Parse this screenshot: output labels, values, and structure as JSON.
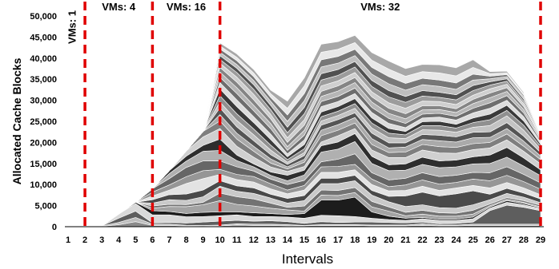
{
  "chart_data": {
    "type": "area",
    "stacked": true,
    "title": "",
    "xlabel": "Intervals",
    "ylabel": "Allocated Cache Blocks",
    "x": [
      1,
      2,
      3,
      4,
      5,
      6,
      7,
      8,
      9,
      10,
      11,
      12,
      13,
      14,
      15,
      16,
      17,
      18,
      19,
      20,
      21,
      22,
      23,
      24,
      25,
      26,
      27,
      28,
      29
    ],
    "x_tick_labels": [
      "1",
      "2",
      "3",
      "4",
      "5",
      "6",
      "7",
      "8",
      "9",
      "10",
      "11",
      "12",
      "13",
      "14",
      "15",
      "16",
      "17",
      "18",
      "19",
      "20",
      "21",
      "22",
      "23",
      "24",
      "25",
      "26",
      "27",
      "28",
      "29"
    ],
    "ylim": [
      0,
      50000
    ],
    "y_ticks": [
      0,
      5000,
      10000,
      15000,
      20000,
      25000,
      30000,
      35000,
      40000,
      45000,
      50000
    ],
    "y_tick_labels": [
      "0",
      "5,000",
      "10,000",
      "15,000",
      "20,000",
      "25,000",
      "30,000",
      "35,000",
      "40,000",
      "45,000",
      "50,000"
    ],
    "grid": false,
    "legend": "none",
    "colors": [
      "#8a8a8a",
      "#bdbdbd",
      "#5e5e5e",
      "#d9d9d9",
      "#1c1c1c",
      "#a3a3a3",
      "#737373",
      "#c9c9c9",
      "#4a4a4a",
      "#e3e3e3",
      "#969696",
      "#666666",
      "#b0b0b0",
      "#2e2e2e",
      "#d0d0d0",
      "#7f7f7f",
      "#aaaaaa",
      "#555555",
      "#c3c3c3",
      "#909090",
      "#3a3a3a",
      "#dcdcdc",
      "#6e6e6e",
      "#b6b6b6",
      "#858585",
      "#cfcfcf",
      "#9c9c9c",
      "#515151",
      "#bfbfbf",
      "#787878",
      "#e8e8e8",
      "#a8a8a8"
    ],
    "series": [
      {
        "values": [
          0,
          50,
          80,
          500,
          1200,
          300,
          300,
          150,
          100,
          200,
          400,
          300,
          300,
          200,
          200,
          300,
          300,
          300,
          200,
          200,
          200,
          300,
          200,
          200,
          300,
          300,
          300,
          300,
          300
        ]
      },
      {
        "values": [
          0,
          50,
          100,
          500,
          1000,
          300,
          300,
          200,
          200,
          200,
          300,
          300,
          300,
          300,
          100,
          200,
          200,
          200,
          200,
          200,
          200,
          400,
          200,
          200,
          300,
          300,
          300,
          300,
          300
        ]
      },
      {
        "values": [
          0,
          0,
          0,
          1000,
          1500,
          300,
          400,
          500,
          800,
          900,
          800,
          700,
          800,
          700,
          500,
          700,
          500,
          600,
          700,
          600,
          500,
          400,
          300,
          400,
          500,
          3200,
          4500,
          4000,
          3200
        ]
      },
      {
        "values": [
          0,
          0,
          0,
          1000,
          1800,
          1900,
          1800,
          1500,
          1300,
          1300,
          1300,
          1100,
          1000,
          1100,
          1200,
          1500,
          1600,
          1300,
          900,
          700,
          600,
          800,
          800,
          700,
          800,
          600,
          700,
          600,
          500
        ]
      },
      {
        "values": [
          0,
          0,
          0,
          0,
          300,
          1000,
          800,
          800,
          1000,
          900,
          700,
          900,
          700,
          600,
          1100,
          3600,
          3700,
          4600,
          1500,
          800,
          500,
          300,
          300,
          300,
          400,
          300,
          400,
          300,
          200
        ]
      },
      {
        "values": [
          0,
          0,
          0,
          0,
          0,
          600,
          1200,
          1600,
          1800,
          2700,
          1800,
          1600,
          1300,
          1100,
          600,
          1200,
          1100,
          1100,
          1200,
          1200,
          600,
          800,
          700,
          700,
          700,
          300,
          300,
          300,
          200
        ]
      },
      {
        "values": [
          0,
          0,
          0,
          0,
          0,
          500,
          500,
          500,
          600,
          1800,
          1800,
          1700,
          1200,
          600,
          1200,
          1200,
          1200,
          1200,
          1300,
          1000,
          800,
          900,
          800,
          700,
          900,
          400,
          400,
          400,
          400
        ]
      },
      {
        "values": [
          0,
          0,
          0,
          0,
          0,
          700,
          1100,
          1000,
          1300,
          1600,
          1300,
          1300,
          1200,
          1000,
          1300,
          1500,
          1600,
          1600,
          1500,
          1200,
          1400,
          1300,
          1200,
          1200,
          1300,
          1000,
          1000,
          800,
          600
        ]
      },
      {
        "values": [
          0,
          0,
          0,
          0,
          0,
          800,
          1200,
          1500,
          1600,
          1300,
          1300,
          1300,
          900,
          1100,
          1200,
          1300,
          1300,
          1300,
          1100,
          1300,
          2500,
          3000,
          2800,
          3400,
          3300,
          1300,
          1200,
          1000,
          900
        ]
      },
      {
        "values": [
          0,
          0,
          0,
          0,
          0,
          900,
          1100,
          2500,
          2700,
          1500,
          1500,
          1400,
          1300,
          1100,
          1300,
          1400,
          1400,
          1300,
          1400,
          1300,
          1300,
          1400,
          1300,
          1400,
          1300,
          1500,
          1400,
          1200,
          1000
        ]
      },
      {
        "values": [
          0,
          0,
          0,
          0,
          0,
          900,
          1200,
          1600,
          1900,
          1200,
          1200,
          1300,
          1200,
          900,
          1100,
          1300,
          1400,
          1300,
          1300,
          1000,
          1300,
          1500,
          1500,
          1300,
          1500,
          1700,
          1700,
          1500,
          1300
        ]
      },
      {
        "values": [
          0,
          0,
          0,
          0,
          0,
          800,
          1500,
          2200,
          2300,
          2000,
          1800,
          1300,
          1100,
          1300,
          1200,
          1200,
          1700,
          2500,
          1500,
          1600,
          1600,
          1700,
          1800,
          1700,
          1600,
          1900,
          2000,
          1700,
          1500
        ]
      },
      {
        "values": [
          0,
          0,
          0,
          0,
          0,
          0,
          1200,
          1500,
          2300,
          2500,
          1500,
          1000,
          900,
          900,
          1300,
          2300,
          2400,
          2900,
          2200,
          2200,
          1900,
          2000,
          2100,
          2000,
          2000,
          2200,
          2300,
          2000,
          1700
        ]
      },
      {
        "values": [
          0,
          0,
          0,
          0,
          0,
          0,
          700,
          1200,
          1400,
          2700,
          1300,
          700,
          800,
          1300,
          1100,
          1500,
          1700,
          1900,
          1700,
          1400,
          1500,
          1700,
          1600,
          1600,
          1700,
          2000,
          2300,
          1900,
          1400
        ]
      },
      {
        "values": [
          0,
          0,
          0,
          0,
          0,
          0,
          0,
          1200,
          2000,
          2500,
          2100,
          1600,
          1200,
          900,
          900,
          900,
          1500,
          1200,
          1500,
          1700,
          1500,
          1700,
          1900,
          1600,
          1700,
          1700,
          1800,
          1600,
          1400
        ]
      },
      {
        "values": [
          0,
          0,
          0,
          0,
          0,
          0,
          0,
          0,
          1300,
          1800,
          1700,
          1400,
          900,
          600,
          1000,
          1500,
          1300,
          1300,
          1300,
          1200,
          1300,
          1300,
          1500,
          1400,
          1400,
          1300,
          1400,
          1200,
          1000
        ]
      },
      {
        "values": [
          0,
          0,
          0,
          0,
          0,
          0,
          0,
          0,
          0,
          1500,
          1400,
          1200,
          1000,
          500,
          700,
          1300,
          1300,
          1300,
          1400,
          1100,
          1200,
          1200,
          1400,
          1300,
          1400,
          1200,
          1300,
          1200,
          900
        ]
      },
      {
        "values": [
          0,
          0,
          0,
          0,
          0,
          0,
          0,
          0,
          0,
          1600,
          1500,
          1300,
          1000,
          600,
          900,
          1200,
          1200,
          1100,
          1300,
          1200,
          1000,
          1200,
          1300,
          1200,
          1300,
          1300,
          1400,
          1200,
          800
        ]
      },
      {
        "values": [
          0,
          0,
          0,
          0,
          0,
          0,
          0,
          0,
          0,
          1400,
          1500,
          1400,
          1100,
          500,
          700,
          1000,
          1000,
          1100,
          1200,
          1200,
          1000,
          1100,
          1200,
          1100,
          1200,
          1500,
          1600,
          1400,
          800
        ]
      },
      {
        "values": [
          0,
          0,
          0,
          0,
          0,
          0,
          0,
          0,
          0,
          1500,
          1600,
          1400,
          1200,
          600,
          900,
          1000,
          1000,
          1100,
          1200,
          1100,
          900,
          1000,
          1100,
          1000,
          1100,
          1400,
          1300,
          1200,
          700
        ]
      },
      {
        "values": [
          0,
          0,
          0,
          0,
          0,
          0,
          0,
          0,
          0,
          1600,
          1700,
          1500,
          1300,
          700,
          1000,
          1100,
          1100,
          1200,
          1200,
          1100,
          800,
          900,
          1000,
          900,
          1100,
          1300,
          1200,
          1000,
          500
        ]
      },
      {
        "values": [
          0,
          0,
          0,
          0,
          0,
          0,
          0,
          0,
          0,
          1500,
          1600,
          1400,
          1300,
          700,
          1100,
          1300,
          1200,
          1200,
          1300,
          1200,
          900,
          900,
          1000,
          1000,
          1200,
          1400,
          1200,
          1000,
          500
        ]
      },
      {
        "values": [
          0,
          0,
          0,
          0,
          0,
          0,
          0,
          0,
          0,
          1300,
          1500,
          1400,
          1300,
          800,
          1100,
          1200,
          1200,
          1300,
          1200,
          1200,
          1000,
          900,
          900,
          900,
          1100,
          1300,
          1100,
          900,
          400
        ]
      },
      {
        "values": [
          0,
          0,
          0,
          0,
          0,
          0,
          0,
          0,
          0,
          1200,
          1400,
          1300,
          1200,
          900,
          1200,
          1200,
          1300,
          1300,
          1300,
          1200,
          1100,
          1000,
          900,
          900,
          1100,
          1200,
          1000,
          800,
          400
        ]
      },
      {
        "values": [
          0,
          0,
          0,
          0,
          0,
          0,
          0,
          0,
          0,
          1100,
          1300,
          1300,
          1100,
          1000,
          1200,
          1200,
          1200,
          1200,
          1200,
          1200,
          1200,
          1000,
          900,
          900,
          1000,
          1100,
          900,
          700,
          300
        ]
      },
      {
        "values": [
          0,
          0,
          0,
          0,
          0,
          0,
          0,
          0,
          0,
          1000,
          1200,
          1300,
          1100,
          1100,
          1300,
          1300,
          1200,
          1200,
          1200,
          1300,
          1300,
          1100,
          1000,
          1000,
          1000,
          1000,
          800,
          700,
          300
        ]
      },
      {
        "values": [
          0,
          0,
          0,
          0,
          0,
          0,
          0,
          0,
          0,
          900,
          1100,
          1200,
          1100,
          1200,
          1400,
          1400,
          1300,
          1300,
          1300,
          1400,
          1400,
          1200,
          1000,
          1100,
          1100,
          900,
          700,
          600,
          300
        ]
      },
      {
        "values": [
          0,
          0,
          0,
          0,
          0,
          0,
          0,
          0,
          0,
          900,
          1000,
          1100,
          1000,
          1300,
          1500,
          1500,
          1400,
          1300,
          1400,
          1500,
          1400,
          1300,
          1200,
          1200,
          1200,
          800,
          600,
          500,
          200
        ]
      },
      {
        "values": [
          0,
          0,
          0,
          0,
          0,
          0,
          0,
          0,
          0,
          800,
          900,
          1000,
          1000,
          1400,
          1600,
          1600,
          1500,
          1400,
          1500,
          1600,
          1500,
          1400,
          1400,
          1300,
          1300,
          700,
          500,
          500,
          200
        ]
      },
      {
        "values": [
          0,
          0,
          0,
          0,
          0,
          0,
          0,
          0,
          0,
          800,
          900,
          900,
          900,
          1500,
          1700,
          1700,
          1600,
          1500,
          1600,
          1700,
          1600,
          1500,
          1500,
          1500,
          1400,
          600,
          500,
          400,
          200
        ]
      },
      {
        "values": [
          0,
          0,
          0,
          0,
          0,
          0,
          0,
          0,
          0,
          700,
          800,
          900,
          900,
          1600,
          1800,
          1800,
          1700,
          1600,
          1700,
          1800,
          1700,
          1600,
          1700,
          1700,
          1600,
          600,
          400,
          400,
          200
        ]
      },
      {
        "values": [
          0,
          0,
          0,
          0,
          0,
          0,
          0,
          0,
          0,
          700,
          800,
          800,
          800,
          1700,
          1900,
          1900,
          1800,
          1700,
          1800,
          1900,
          1800,
          1700,
          1900,
          1900,
          1800,
          500,
          400,
          300,
          100
        ]
      }
    ],
    "annotations": [
      {
        "text": "VMs: 1",
        "x": 1.5
      },
      {
        "text": "VMs: 4",
        "x": 4
      },
      {
        "text": "VMs: 16",
        "x": 8
      },
      {
        "text": "VMs: 32",
        "x": 19.5
      }
    ],
    "vm_boundaries": [
      2,
      6,
      10,
      29
    ],
    "boundary_color": "#e00000"
  }
}
